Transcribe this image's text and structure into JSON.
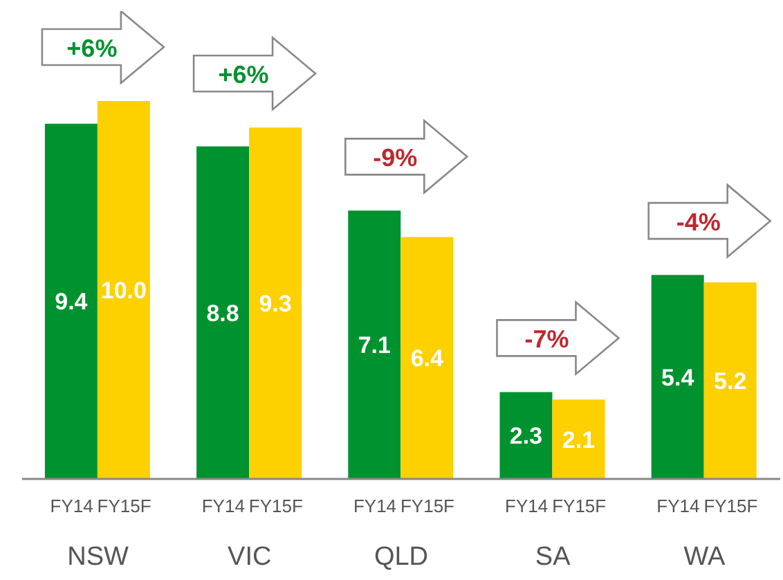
{
  "chart_data": {
    "type": "bar",
    "categories": [
      "NSW",
      "VIC",
      "QLD",
      "SA",
      "WA"
    ],
    "series": [
      {
        "name": "FY14",
        "color": "#00922f",
        "values": [
          9.4,
          8.8,
          7.1,
          2.3,
          5.4
        ]
      },
      {
        "name": "FY15F",
        "color": "#fdd000",
        "values": [
          10.0,
          9.3,
          6.4,
          2.1,
          5.2
        ],
        "value_labels": [
          "10.0",
          "9.3",
          "6.4",
          "2.1",
          "5.2"
        ]
      }
    ],
    "data_labels": true,
    "annotations": [
      "+6%",
      "+6%",
      "-9%",
      "-7%",
      "-4%"
    ]
  }
}
